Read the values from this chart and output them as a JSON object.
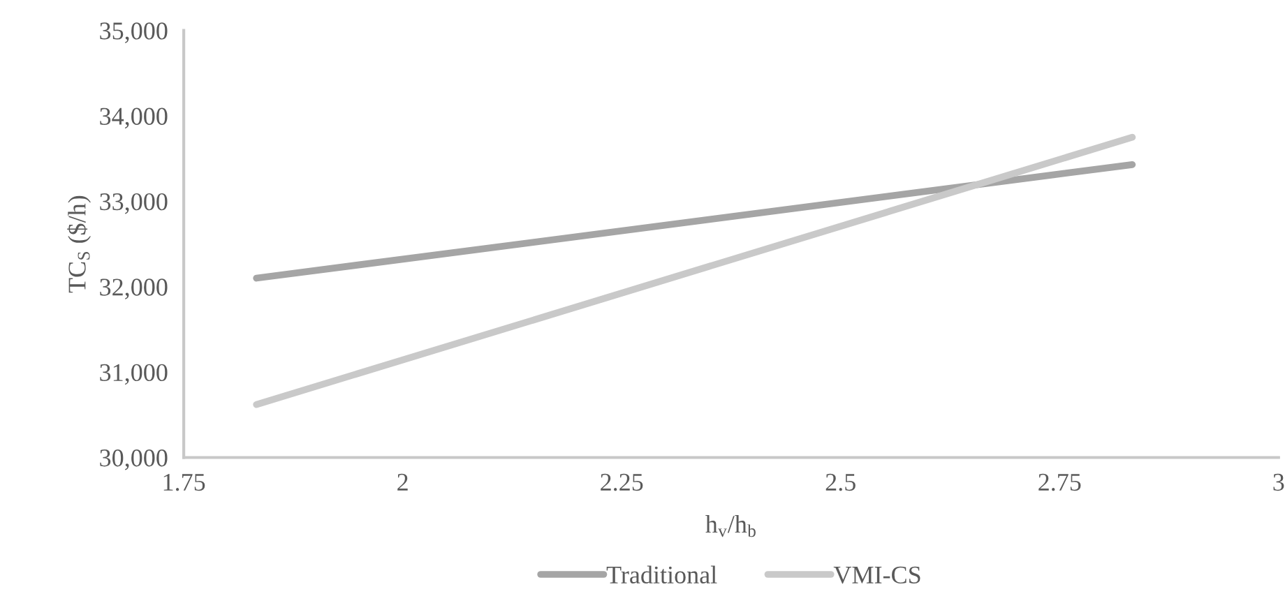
{
  "chart_data": {
    "type": "line",
    "x": [
      1.833,
      2.833
    ],
    "series": [
      {
        "name": "Traditional",
        "color": "#a5a5a5",
        "values": [
          32100,
          33430
        ]
      },
      {
        "name": "VMI-CS",
        "color": "#c9c9c9",
        "values": [
          30620,
          33750
        ]
      }
    ],
    "xlabel": "h$_{v}$/h$_{b}$",
    "ylabel": "TC$_{S}$ ($/h)",
    "xlim": [
      1.75,
      3
    ],
    "xticks": [
      1.75,
      2,
      2.25,
      2.5,
      2.75,
      3
    ],
    "ylim": [
      30000,
      35000
    ],
    "yticks": [
      {
        "value": 30000,
        "label": "30,000"
      },
      {
        "value": 31000,
        "label": "31,000"
      },
      {
        "value": 32000,
        "label": "32,000"
      },
      {
        "value": 33000,
        "label": "33,000"
      },
      {
        "value": 34000,
        "label": "34,000"
      },
      {
        "value": 35000,
        "label": "35,000"
      }
    ],
    "legend": "bottom",
    "grid": false,
    "marker": "none",
    "line_style": "solid"
  }
}
